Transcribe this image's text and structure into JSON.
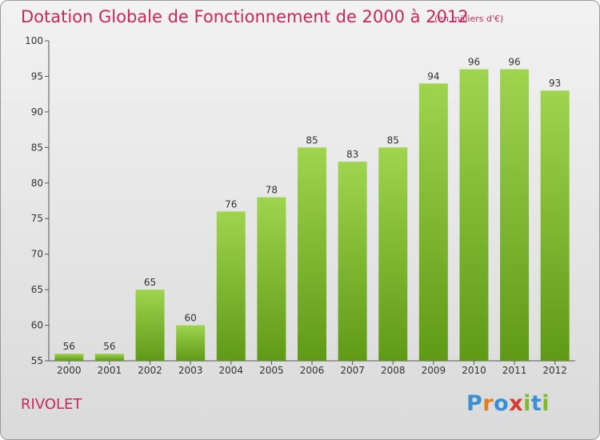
{
  "title": "Dotation Globale de Fonctionnement de 2000 à 2012",
  "subtitle": "(en milliers d'€)",
  "commune": "RIVOLET",
  "logo": {
    "letters": [
      "P",
      "r",
      "o",
      "x",
      "i",
      "t",
      "i"
    ],
    "colors": [
      "#3a8fd6",
      "#e37d1f",
      "#3a8fd6",
      "#d63a2f",
      "#7dbb2a",
      "#3a8fd6",
      "#7dbb2a"
    ]
  },
  "colors": {
    "title": "#c4285e",
    "bar_light": "#9fd44f",
    "bar_dark": "#5f9a16",
    "axis": "#555555"
  },
  "chart_data": {
    "type": "bar",
    "categories": [
      "2000",
      "2001",
      "2002",
      "2003",
      "2004",
      "2005",
      "2006",
      "2007",
      "2008",
      "2009",
      "2010",
      "2011",
      "2012"
    ],
    "values": [
      56,
      56,
      65,
      60,
      76,
      78,
      85,
      83,
      85,
      94,
      96,
      96,
      93
    ],
    "ylim": [
      55,
      100
    ],
    "yticks": [
      55,
      60,
      65,
      70,
      75,
      80,
      85,
      90,
      95,
      100
    ],
    "grid": false,
    "legend": "none"
  }
}
